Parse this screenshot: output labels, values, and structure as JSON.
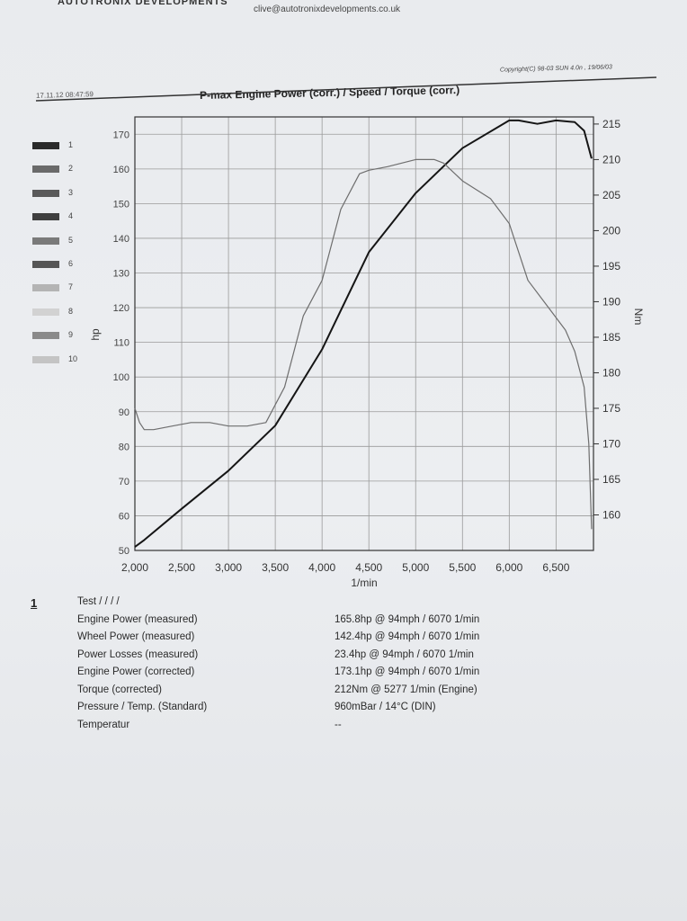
{
  "header": {
    "company": "AUTOTRONIX DEVELOPMENTS",
    "email": "clive@autotronixdevelopments.co.uk",
    "copyright": "Copyright(C) 98-03 SUN 4.0n , 19/06/03",
    "datestamp": "17.11.12 08:47:59"
  },
  "legend": {
    "items": [
      "1",
      "2",
      "3",
      "4",
      "5",
      "6",
      "7",
      "8",
      "9",
      "10"
    ],
    "swatch_colors": [
      "#2a2a2a",
      "#6a6a6a",
      "#5a5a5a",
      "#3f3f3f",
      "#7a7a7a",
      "#555555",
      "#b4b4b4",
      "#d2d2d2",
      "#8a8a8a",
      "#c4c4c4"
    ]
  },
  "chart_data": {
    "type": "line",
    "title": "P-max Engine Power  (corr.) / Speed / Torque (corr.)",
    "xlabel": "1/min",
    "ylabel": "hp",
    "y2label": "Nm",
    "xlim": [
      2000,
      6900
    ],
    "ylim": [
      50,
      175
    ],
    "y2lim": [
      155,
      216
    ],
    "x_ticks": [
      2000,
      2500,
      3000,
      3500,
      4000,
      4500,
      5000,
      5500,
      6000,
      6500
    ],
    "x_tick_labels": [
      "2,000",
      "2,500",
      "3,000",
      "3,500",
      "4,000",
      "4,500",
      "5,000",
      "5,500",
      "6,000",
      "6,500"
    ],
    "y_ticks": [
      50,
      60,
      70,
      80,
      90,
      100,
      110,
      120,
      130,
      140,
      150,
      160,
      170
    ],
    "y_tick_labels": [
      "50",
      "60",
      "70",
      "80",
      "90",
      "100",
      "110",
      "120",
      "130",
      "140",
      "150",
      "160",
      "170"
    ],
    "y2_ticks": [
      160,
      165,
      170,
      175,
      180,
      185,
      190,
      195,
      200,
      205,
      210,
      215
    ],
    "y2_tick_labels": [
      "160",
      "165",
      "170",
      "175",
      "180",
      "185",
      "190",
      "195",
      "200",
      "205",
      "210",
      "215"
    ],
    "grid": true,
    "series": [
      {
        "axis": "left",
        "color": "#151515",
        "x": [
          2000,
          2100,
          2500,
          3000,
          3500,
          4000,
          4500,
          5000,
          5500,
          6000,
          6100,
          6300,
          6500,
          6700,
          6800,
          6880
        ],
        "y": [
          51,
          53,
          62,
          73,
          86,
          108,
          136,
          153,
          166,
          174,
          174,
          173,
          174,
          173.5,
          171,
          163
        ]
      },
      {
        "axis": "right",
        "color": "#6e6e6e",
        "x": [
          2000,
          2050,
          2100,
          2200,
          2400,
          2600,
          2800,
          3000,
          3200,
          3400,
          3600,
          3800,
          4000,
          4200,
          4400,
          4500,
          4700,
          5000,
          5200,
          5300,
          5500,
          5800,
          6000,
          6200,
          6400,
          6600,
          6700,
          6800,
          6850,
          6880
        ],
        "y": [
          175,
          173,
          172,
          172,
          172.5,
          173,
          173,
          172.5,
          172.5,
          173,
          178,
          188,
          193,
          203,
          208,
          208.5,
          209,
          210,
          210,
          209.5,
          207,
          204.5,
          201,
          193,
          189.5,
          186,
          183,
          178,
          170,
          158
        ]
      }
    ]
  },
  "results": {
    "index": "1",
    "rows": [
      {
        "label": "Test / / / /",
        "value": ""
      },
      {
        "label": "Engine Power (measured)",
        "value": "165.8hp @ 94mph / 6070 1/min"
      },
      {
        "label": "Wheel Power (measured)",
        "value": "142.4hp @ 94mph / 6070 1/min"
      },
      {
        "label": "Power Losses (measured)",
        "value": "23.4hp @ 94mph / 6070 1/min"
      },
      {
        "label": "Engine Power (corrected)",
        "value": "173.1hp @ 94mph / 6070 1/min"
      },
      {
        "label": "Torque (corrected)",
        "value": "212Nm @ 5277 1/min (Engine)"
      },
      {
        "label": "Pressure / Temp. (Standard)",
        "value": "960mBar / 14°C (DIN)"
      },
      {
        "label": "Temperatur",
        "value": "--"
      }
    ]
  }
}
